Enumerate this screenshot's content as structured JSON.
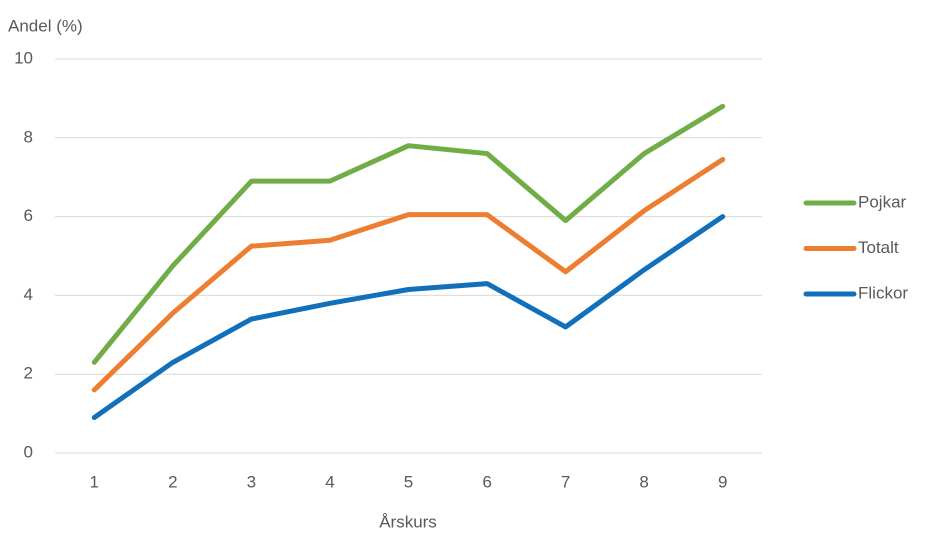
{
  "chart_data": {
    "type": "line",
    "ylabel": "Andel (%)",
    "xlabel": "Årskurs",
    "categories": [
      "1",
      "2",
      "3",
      "4",
      "5",
      "6",
      "7",
      "8",
      "9"
    ],
    "series": [
      {
        "name": "Pojkar",
        "color": "#70ad47",
        "values": [
          2.3,
          4.75,
          6.9,
          6.9,
          7.8,
          7.6,
          5.9,
          7.6,
          8.8
        ]
      },
      {
        "name": "Totalt",
        "color": "#ed7d31",
        "values": [
          1.6,
          3.55,
          5.25,
          5.4,
          6.05,
          6.05,
          4.6,
          6.15,
          7.45
        ]
      },
      {
        "name": "Flickor",
        "color": "#1170b9",
        "values": [
          0.9,
          2.3,
          3.4,
          3.8,
          4.15,
          4.3,
          3.2,
          4.65,
          6.0
        ]
      }
    ],
    "ylim": [
      0,
      10
    ],
    "yticks": [
      0,
      2,
      4,
      6,
      8,
      10
    ],
    "grid": true,
    "legend": "right"
  }
}
